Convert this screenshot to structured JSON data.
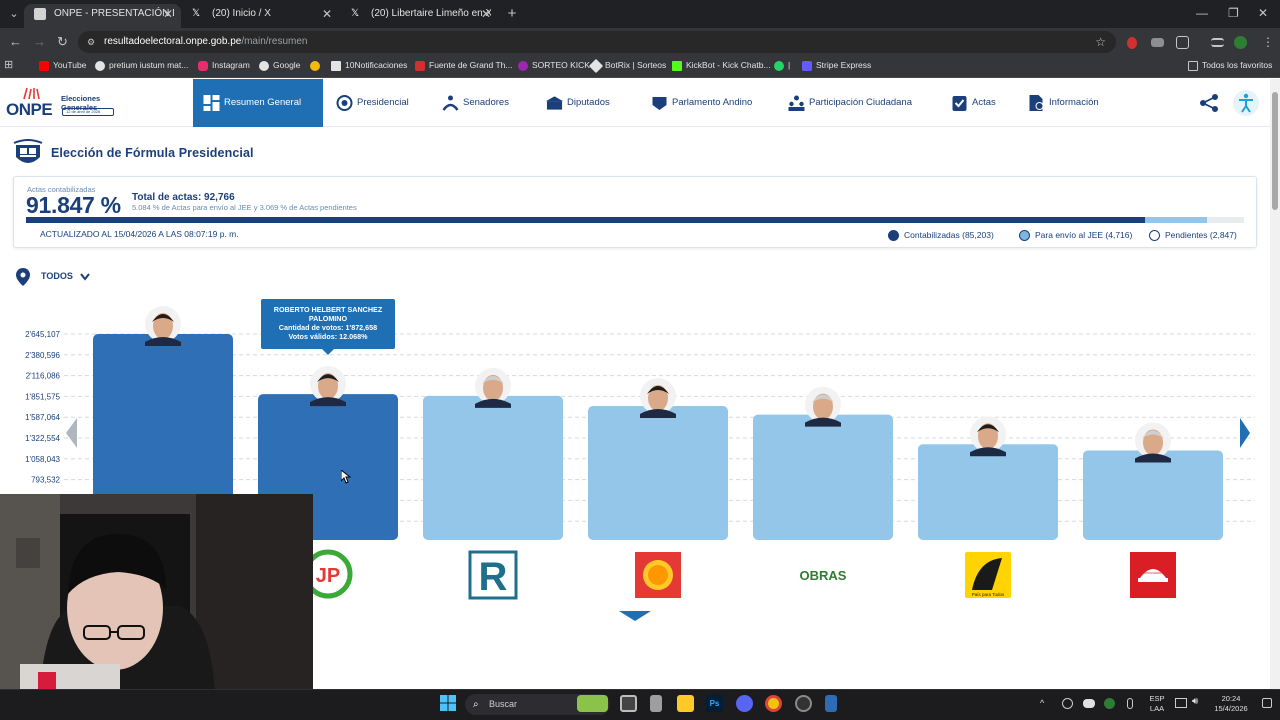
{
  "browser": {
    "tabs": [
      {
        "title": "ONPE - PRESENTACIÓN DE RES",
        "active": true
      },
      {
        "title": "(20) Inicio / X",
        "active": false
      },
      {
        "title": "(20) Libertaire Limeño en X: \"La",
        "active": false
      }
    ],
    "new_tab": "+",
    "url_domain": "resultadoelectoral.onpe.gob.pe",
    "url_path": "/main/resumen",
    "bookmarks": [
      "YouTube",
      "pretium iustum mat...",
      "Instagram",
      "Google",
      "",
      "10Notificaciones",
      "Fuente de Grand Th...",
      "SORTEO KICK",
      "BotRix | Sorteos",
      "KickBot - Kick Chatb...",
      "|",
      "Stripe Express"
    ],
    "all_bookmarks": "Todos los favoritos"
  },
  "header": {
    "logo": "ONPE",
    "logo_sub": "Elecciones Generales",
    "logo_date": "12 de abril de 2026",
    "nav": [
      "Resumen General",
      "Presidencial",
      "Senadores",
      "Diputados",
      "Parlamento Andino",
      "Participación Ciudadana",
      "Actas",
      "Información"
    ]
  },
  "page": {
    "title": "Elección de Fórmula Presidencial",
    "actas_label": "Actas contabilizadas",
    "actas_pct": "91.847 %",
    "total_actas": "Total de actas: 92,766",
    "sub_note": "5.084 % de Actas para envío al JEE y 3.069 % de Actas pendientes",
    "updated": "ACTUALIZADO AL 15/04/2026 A LAS 08:07:19 p. m.",
    "legend": [
      {
        "label": "Contabilizadas (85,203)",
        "color": "#1b3f7a"
      },
      {
        "label": "Para envío al JEE (4,716)",
        "color": "#7fb6e0"
      },
      {
        "label": "Pendientes (2,847)",
        "color": "#ffffff"
      }
    ],
    "progress": {
      "counted": 0.91847,
      "jee": 0.05084
    },
    "location": "TODOS"
  },
  "tooltip": {
    "name": "ROBERTO HELBERT SANCHEZ PALOMINO",
    "votes": "Cantidad de votos: 1'872,658",
    "valid": "Votos válidos: 12.068%"
  },
  "chart_data": {
    "type": "bar",
    "y_ticks": [
      "2'645,107",
      "2'380,596",
      "2'116,086",
      "1'851,575",
      "1'587,064",
      "1'322,554",
      "1'058,043",
      "793,532"
    ],
    "ylim": [
      0,
      2645107
    ],
    "categories": [
      "",
      "",
      "",
      "",
      "",
      "",
      ""
    ],
    "values": [
      2645107,
      1872658,
      1850000,
      1720000,
      1610000,
      1230000,
      1150000
    ],
    "highlight": [
      true,
      true,
      false,
      false,
      false,
      false,
      false
    ],
    "party_logos": [
      "",
      "JP",
      "R",
      "",
      "OBRAS",
      "País para Todos",
      "Renovación"
    ],
    "colors": {
      "highlight": "#2e6fb6",
      "default": "#93c6e8"
    }
  },
  "taskbar": {
    "search": "Buscar",
    "lang": "ESP",
    "lang2": "LAA",
    "time": "20:24",
    "date": "15/4/2026"
  }
}
